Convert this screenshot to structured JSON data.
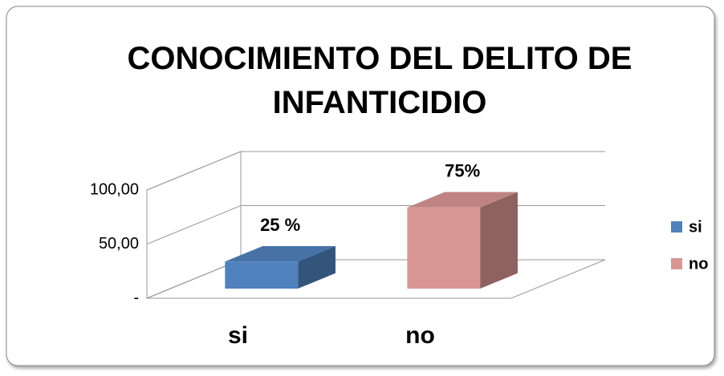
{
  "chart_data": {
    "type": "bar3d",
    "title": "CONOCIMIENTO DEL DELITO DE INFANTICIDIO",
    "categories": [
      "si",
      "no"
    ],
    "values": [
      25,
      75
    ],
    "value_labels": [
      "25 %",
      "75%"
    ],
    "colors": [
      "#4f81bd",
      "#d99694"
    ],
    "ylim": [
      0,
      100
    ],
    "yticks": [
      {
        "value": 0,
        "label": "-"
      },
      {
        "value": 50,
        "label": "50,00"
      },
      {
        "value": 100,
        "label": "100,00"
      }
    ],
    "grid": true,
    "legend": "right"
  }
}
